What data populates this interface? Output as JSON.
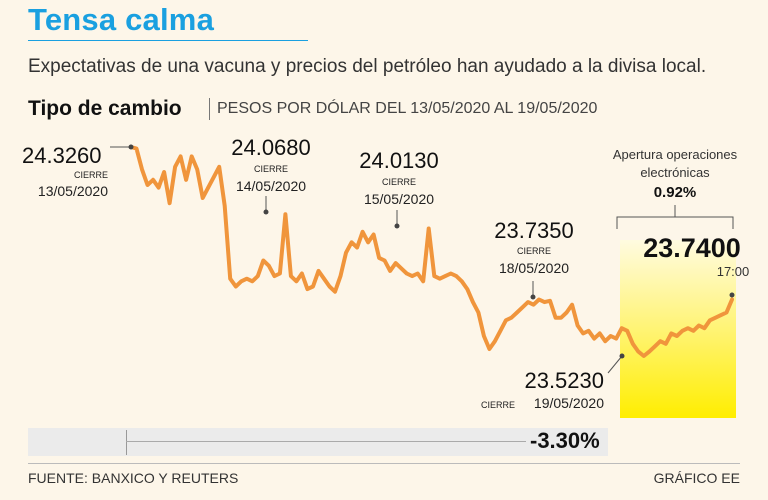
{
  "header": {
    "title": "Tensa calma",
    "subtitle": "Expectativas de una vacuna y precios del petróleo han ayudado a la divisa local.",
    "chart_title": "Tipo de cambio",
    "chart_subtitle": "PESOS POR DÓLAR DEL 13/05/2020 AL 19/05/2020"
  },
  "colors": {
    "line": "#f0953c",
    "highlight_top": "#fff8c8",
    "highlight_bottom": "#ffee00",
    "title": "#1aa0e0"
  },
  "chart_data": {
    "type": "line",
    "title": "Tipo de cambio",
    "ylabel": "Pesos por dólar",
    "ylim": [
      23.45,
      24.4
    ],
    "series": [
      {
        "name": "Pesos por dólar",
        "values": [
          24.326,
          24.32,
          24.24,
          24.18,
          24.2,
          24.17,
          24.23,
          24.11,
          24.25,
          24.29,
          24.2,
          24.29,
          24.24,
          24.13,
          24.17,
          24.21,
          24.25,
          24.1,
          23.82,
          23.79,
          23.81,
          23.82,
          23.81,
          23.83,
          23.89,
          23.87,
          23.83,
          23.84,
          24.068,
          23.83,
          23.81,
          23.84,
          23.78,
          23.79,
          23.85,
          23.82,
          23.79,
          23.77,
          23.83,
          23.92,
          23.96,
          23.94,
          24.0,
          23.96,
          23.99,
          23.9,
          23.89,
          23.85,
          23.88,
          23.86,
          23.84,
          23.83,
          23.84,
          23.81,
          24.013,
          23.83,
          23.82,
          23.83,
          23.84,
          23.83,
          23.81,
          23.78,
          23.73,
          23.69,
          23.6,
          23.55,
          23.58,
          23.62,
          23.66,
          23.67,
          23.69,
          23.71,
          23.73,
          23.72,
          23.74,
          23.73,
          23.735,
          23.67,
          23.67,
          23.69,
          23.72,
          23.64,
          23.61,
          23.62,
          23.59,
          23.61,
          23.58,
          23.6,
          23.59,
          23.63,
          23.62,
          23.57,
          23.54,
          23.523,
          23.54,
          23.56,
          23.58,
          23.57,
          23.61,
          23.6,
          23.62,
          23.63,
          23.62,
          23.64,
          23.63,
          23.66,
          23.67,
          23.68,
          23.69,
          23.74
        ]
      }
    ],
    "annotations": [
      {
        "value": "24.3260",
        "label": "CIERRE",
        "date": "13/05/2020"
      },
      {
        "value": "24.0680",
        "label": "CIERRE",
        "date": "14/05/2020"
      },
      {
        "value": "24.0130",
        "label": "CIERRE",
        "date": "15/05/2020"
      },
      {
        "value": "23.7350",
        "label": "CIERRE",
        "date": "18/05/2020"
      },
      {
        "value": "23.5230",
        "label": "CIERRE",
        "date": "19/05/2020"
      }
    ],
    "electronic": {
      "title_line1": "Apertura operaciones",
      "title_line2": "electrónicas",
      "change": "0.92%",
      "value": "23.7400",
      "time": "17:00"
    },
    "total_change": "-3.30%"
  },
  "footer": {
    "source": "FUENTE: BANXICO Y REUTERS",
    "credit": "GRÁFICO EE"
  }
}
